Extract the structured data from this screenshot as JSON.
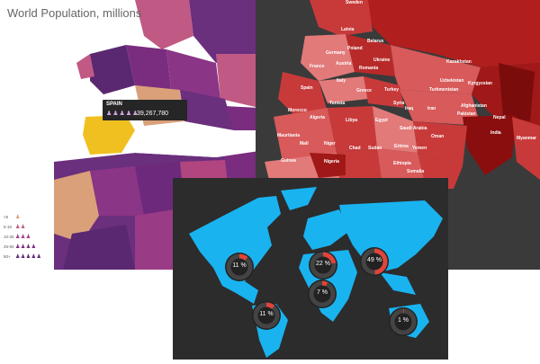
{
  "panel_a": {
    "title": "World Population, millions",
    "tooltip": {
      "country": "SPAIN",
      "value": "39,267,780"
    },
    "legend": [
      {
        "label": "<5",
        "icons": 1,
        "color": "#d9a07a"
      },
      {
        "label": "5-10",
        "icons": 2,
        "color": "#c05a85"
      },
      {
        "label": "10-25",
        "icons": 3,
        "color": "#a03a80"
      },
      {
        "label": "25-50",
        "icons": 4,
        "color": "#7a2c7e"
      },
      {
        "label": "50+",
        "icons": 5,
        "color": "#5a2870"
      }
    ]
  },
  "panel_b": {
    "countries": [
      {
        "name": "Sweden"
      },
      {
        "name": "Latvia"
      },
      {
        "name": "Poland"
      },
      {
        "name": "Belarus"
      },
      {
        "name": "Germany"
      },
      {
        "name": "Ukraine"
      },
      {
        "name": "Austria"
      },
      {
        "name": "Kazakhstan"
      },
      {
        "name": "France"
      },
      {
        "name": "Romania"
      },
      {
        "name": "Uzbekistan"
      },
      {
        "name": "Kyrgyzstan"
      },
      {
        "name": "Italy"
      },
      {
        "name": "Spain"
      },
      {
        "name": "Greece"
      },
      {
        "name": "Turkey"
      },
      {
        "name": "Turkmenistan"
      },
      {
        "name": "Morocco"
      },
      {
        "name": "Tunisia"
      },
      {
        "name": "Syria"
      },
      {
        "name": "Iraq"
      },
      {
        "name": "Iran"
      },
      {
        "name": "Afghanistan"
      },
      {
        "name": "Pakistan"
      },
      {
        "name": "Nepal"
      },
      {
        "name": "Algeria"
      },
      {
        "name": "Libya"
      },
      {
        "name": "Egypt"
      },
      {
        "name": "Saudi Arabia"
      },
      {
        "name": "Oman"
      },
      {
        "name": "India"
      },
      {
        "name": "Myanmar"
      },
      {
        "name": "Mauritania"
      },
      {
        "name": "Mali"
      },
      {
        "name": "Niger"
      },
      {
        "name": "Chad"
      },
      {
        "name": "Sudan"
      },
      {
        "name": "Eritrea"
      },
      {
        "name": "Yemen"
      },
      {
        "name": "Guinea"
      },
      {
        "name": "Nigeria"
      },
      {
        "name": "Ethiopia"
      },
      {
        "name": "Somalia"
      }
    ]
  },
  "panel_c": {
    "donuts": [
      {
        "label": "11 %",
        "value": 11
      },
      {
        "label": "22 %",
        "value": 22
      },
      {
        "label": "49 %",
        "value": 49
      },
      {
        "label": "7 %",
        "value": 7
      },
      {
        "label": "11 %",
        "value": 11
      },
      {
        "label": "1 %",
        "value": 1
      }
    ]
  },
  "colors": {
    "spain_highlight": "#f0c020",
    "red_dark": "#8a0e0e",
    "red_mid": "#c83a3a",
    "red_light": "#e27a7a",
    "ocean_dark": "#2c2c2c",
    "land_blue": "#19b3f0",
    "donut_red": "#e0443a",
    "donut_track": "#444444"
  }
}
